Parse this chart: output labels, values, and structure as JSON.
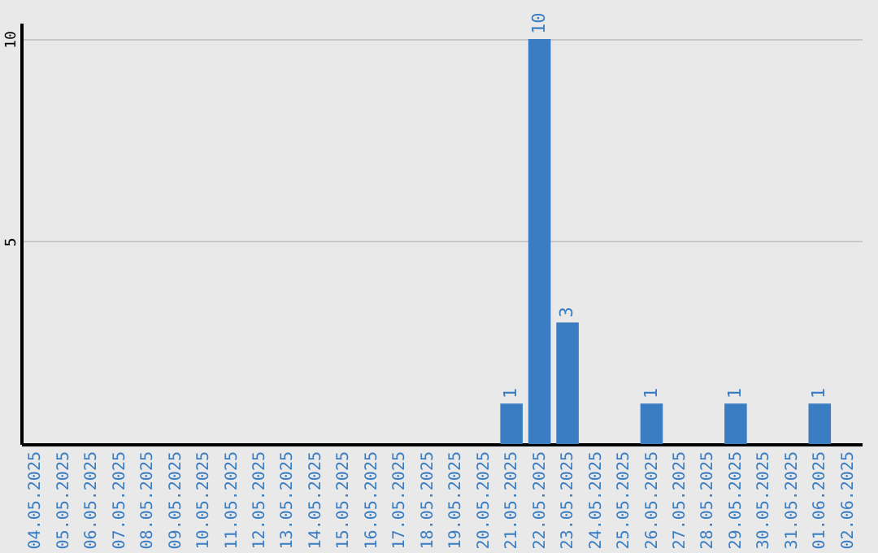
{
  "chart_data": {
    "type": "bar",
    "categories": [
      "04.05.2025",
      "05.05.2025",
      "06.05.2025",
      "07.05.2025",
      "08.05.2025",
      "09.05.2025",
      "10.05.2025",
      "11.05.2025",
      "12.05.2025",
      "13.05.2025",
      "14.05.2025",
      "15.05.2025",
      "16.05.2025",
      "17.05.2025",
      "18.05.2025",
      "19.05.2025",
      "20.05.2025",
      "21.05.2025",
      "22.05.2025",
      "23.05.2025",
      "24.05.2025",
      "25.05.2025",
      "26.05.2025",
      "27.05.2025",
      "28.05.2025",
      "29.05.2025",
      "30.05.2025",
      "31.05.2025",
      "01.06.2025",
      "02.06.2025"
    ],
    "values": [
      0,
      0,
      0,
      0,
      0,
      0,
      0,
      0,
      0,
      0,
      0,
      0,
      0,
      0,
      0,
      0,
      0,
      1,
      10,
      3,
      0,
      0,
      1,
      0,
      0,
      1,
      0,
      0,
      1,
      0
    ],
    "value_labels": [
      null,
      null,
      null,
      null,
      null,
      null,
      null,
      null,
      null,
      null,
      null,
      null,
      null,
      null,
      null,
      null,
      null,
      "1",
      "10",
      "3",
      null,
      null,
      "1",
      null,
      null,
      "1",
      null,
      null,
      "1",
      null
    ],
    "color": "#3b7dc2",
    "ylim": [
      0,
      10.4
    ],
    "yticks": [
      5,
      10
    ],
    "grid": "y"
  }
}
